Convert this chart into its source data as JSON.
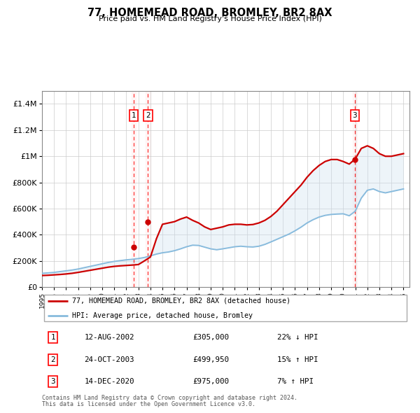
{
  "title": "77, HOMEMEAD ROAD, BROMLEY, BR2 8AX",
  "subtitle": "Price paid vs. HM Land Registry's House Price Index (HPI)",
  "ylabel_ticks": [
    "£0",
    "£200K",
    "£400K",
    "£600K",
    "£800K",
    "£1M",
    "£1.2M",
    "£1.4M"
  ],
  "ytick_values": [
    0,
    200000,
    400000,
    600000,
    800000,
    1000000,
    1200000,
    1400000
  ],
  "ylim": [
    0,
    1500000
  ],
  "xlim_start": 1995,
  "xlim_end": 2025.5,
  "line1_color": "#cc0000",
  "line2_color": "#88bbdd",
  "shade_color": "#cce0f0",
  "legend_line1": "77, HOMEMEAD ROAD, BROMLEY, BR2 8AX (detached house)",
  "legend_line2": "HPI: Average price, detached house, Bromley",
  "transactions": [
    {
      "num": 1,
      "date": "12-AUG-2002",
      "price": "£305,000",
      "hpi": "22% ↓ HPI",
      "year": 2002.62
    },
    {
      "num": 2,
      "date": "24-OCT-2003",
      "price": "£499,950",
      "hpi": "15% ↑ HPI",
      "year": 2003.8
    },
    {
      "num": 3,
      "date": "14-DEC-2020",
      "price": "£975,000",
      "hpi": "7% ↑ HPI",
      "year": 2020.96
    }
  ],
  "transaction_prices": [
    305000,
    499950,
    975000
  ],
  "footnote1": "Contains HM Land Registry data © Crown copyright and database right 2024.",
  "footnote2": "This data is licensed under the Open Government Licence v3.0.",
  "hpi_years": [
    1995.0,
    1995.5,
    1996.0,
    1996.5,
    1997.0,
    1997.5,
    1998.0,
    1998.5,
    1999.0,
    1999.5,
    2000.0,
    2000.5,
    2001.0,
    2001.5,
    2002.0,
    2002.5,
    2003.0,
    2003.5,
    2004.0,
    2004.5,
    2005.0,
    2005.5,
    2006.0,
    2006.5,
    2007.0,
    2007.5,
    2008.0,
    2008.5,
    2009.0,
    2009.5,
    2010.0,
    2010.5,
    2011.0,
    2011.5,
    2012.0,
    2012.5,
    2013.0,
    2013.5,
    2014.0,
    2014.5,
    2015.0,
    2015.5,
    2016.0,
    2016.5,
    2017.0,
    2017.5,
    2018.0,
    2018.5,
    2019.0,
    2019.5,
    2020.0,
    2020.5,
    2021.0,
    2021.5,
    2022.0,
    2022.5,
    2023.0,
    2023.5,
    2024.0,
    2024.5,
    2025.0
  ],
  "hpi_values": [
    105000,
    108000,
    112000,
    118000,
    124000,
    130000,
    138000,
    148000,
    158000,
    168000,
    178000,
    188000,
    196000,
    202000,
    208000,
    212000,
    218000,
    226000,
    238000,
    252000,
    262000,
    268000,
    278000,
    292000,
    308000,
    320000,
    318000,
    305000,
    292000,
    285000,
    292000,
    300000,
    308000,
    312000,
    308000,
    306000,
    312000,
    326000,
    345000,
    365000,
    385000,
    405000,
    430000,
    458000,
    490000,
    515000,
    535000,
    548000,
    555000,
    558000,
    560000,
    545000,
    580000,
    680000,
    740000,
    750000,
    730000,
    720000,
    730000,
    740000,
    750000
  ],
  "price_years": [
    1995.0,
    1995.5,
    1996.0,
    1996.5,
    1997.0,
    1997.5,
    1998.0,
    1998.5,
    1999.0,
    1999.5,
    2000.0,
    2000.5,
    2001.0,
    2001.5,
    2002.0,
    2002.5,
    2003.0,
    2003.5,
    2004.0,
    2004.5,
    2005.0,
    2005.5,
    2006.0,
    2006.5,
    2007.0,
    2007.5,
    2008.0,
    2008.5,
    2009.0,
    2009.5,
    2010.0,
    2010.5,
    2011.0,
    2011.5,
    2012.0,
    2012.5,
    2013.0,
    2013.5,
    2014.0,
    2014.5,
    2015.0,
    2015.5,
    2016.0,
    2016.5,
    2017.0,
    2017.5,
    2018.0,
    2018.5,
    2019.0,
    2019.5,
    2020.0,
    2020.5,
    2021.0,
    2021.5,
    2022.0,
    2022.5,
    2023.0,
    2023.5,
    2024.0,
    2024.5,
    2025.0
  ],
  "price_values": [
    88000,
    90000,
    93000,
    96000,
    100000,
    105000,
    112000,
    120000,
    128000,
    136000,
    144000,
    152000,
    158000,
    162000,
    165000,
    168000,
    172000,
    200000,
    230000,
    370000,
    480000,
    490000,
    500000,
    520000,
    535000,
    510000,
    490000,
    460000,
    440000,
    450000,
    460000,
    475000,
    480000,
    480000,
    475000,
    478000,
    490000,
    510000,
    540000,
    580000,
    630000,
    680000,
    730000,
    780000,
    840000,
    890000,
    930000,
    960000,
    975000,
    975000,
    960000,
    940000,
    980000,
    1060000,
    1080000,
    1060000,
    1020000,
    1000000,
    1000000,
    1010000,
    1020000
  ]
}
